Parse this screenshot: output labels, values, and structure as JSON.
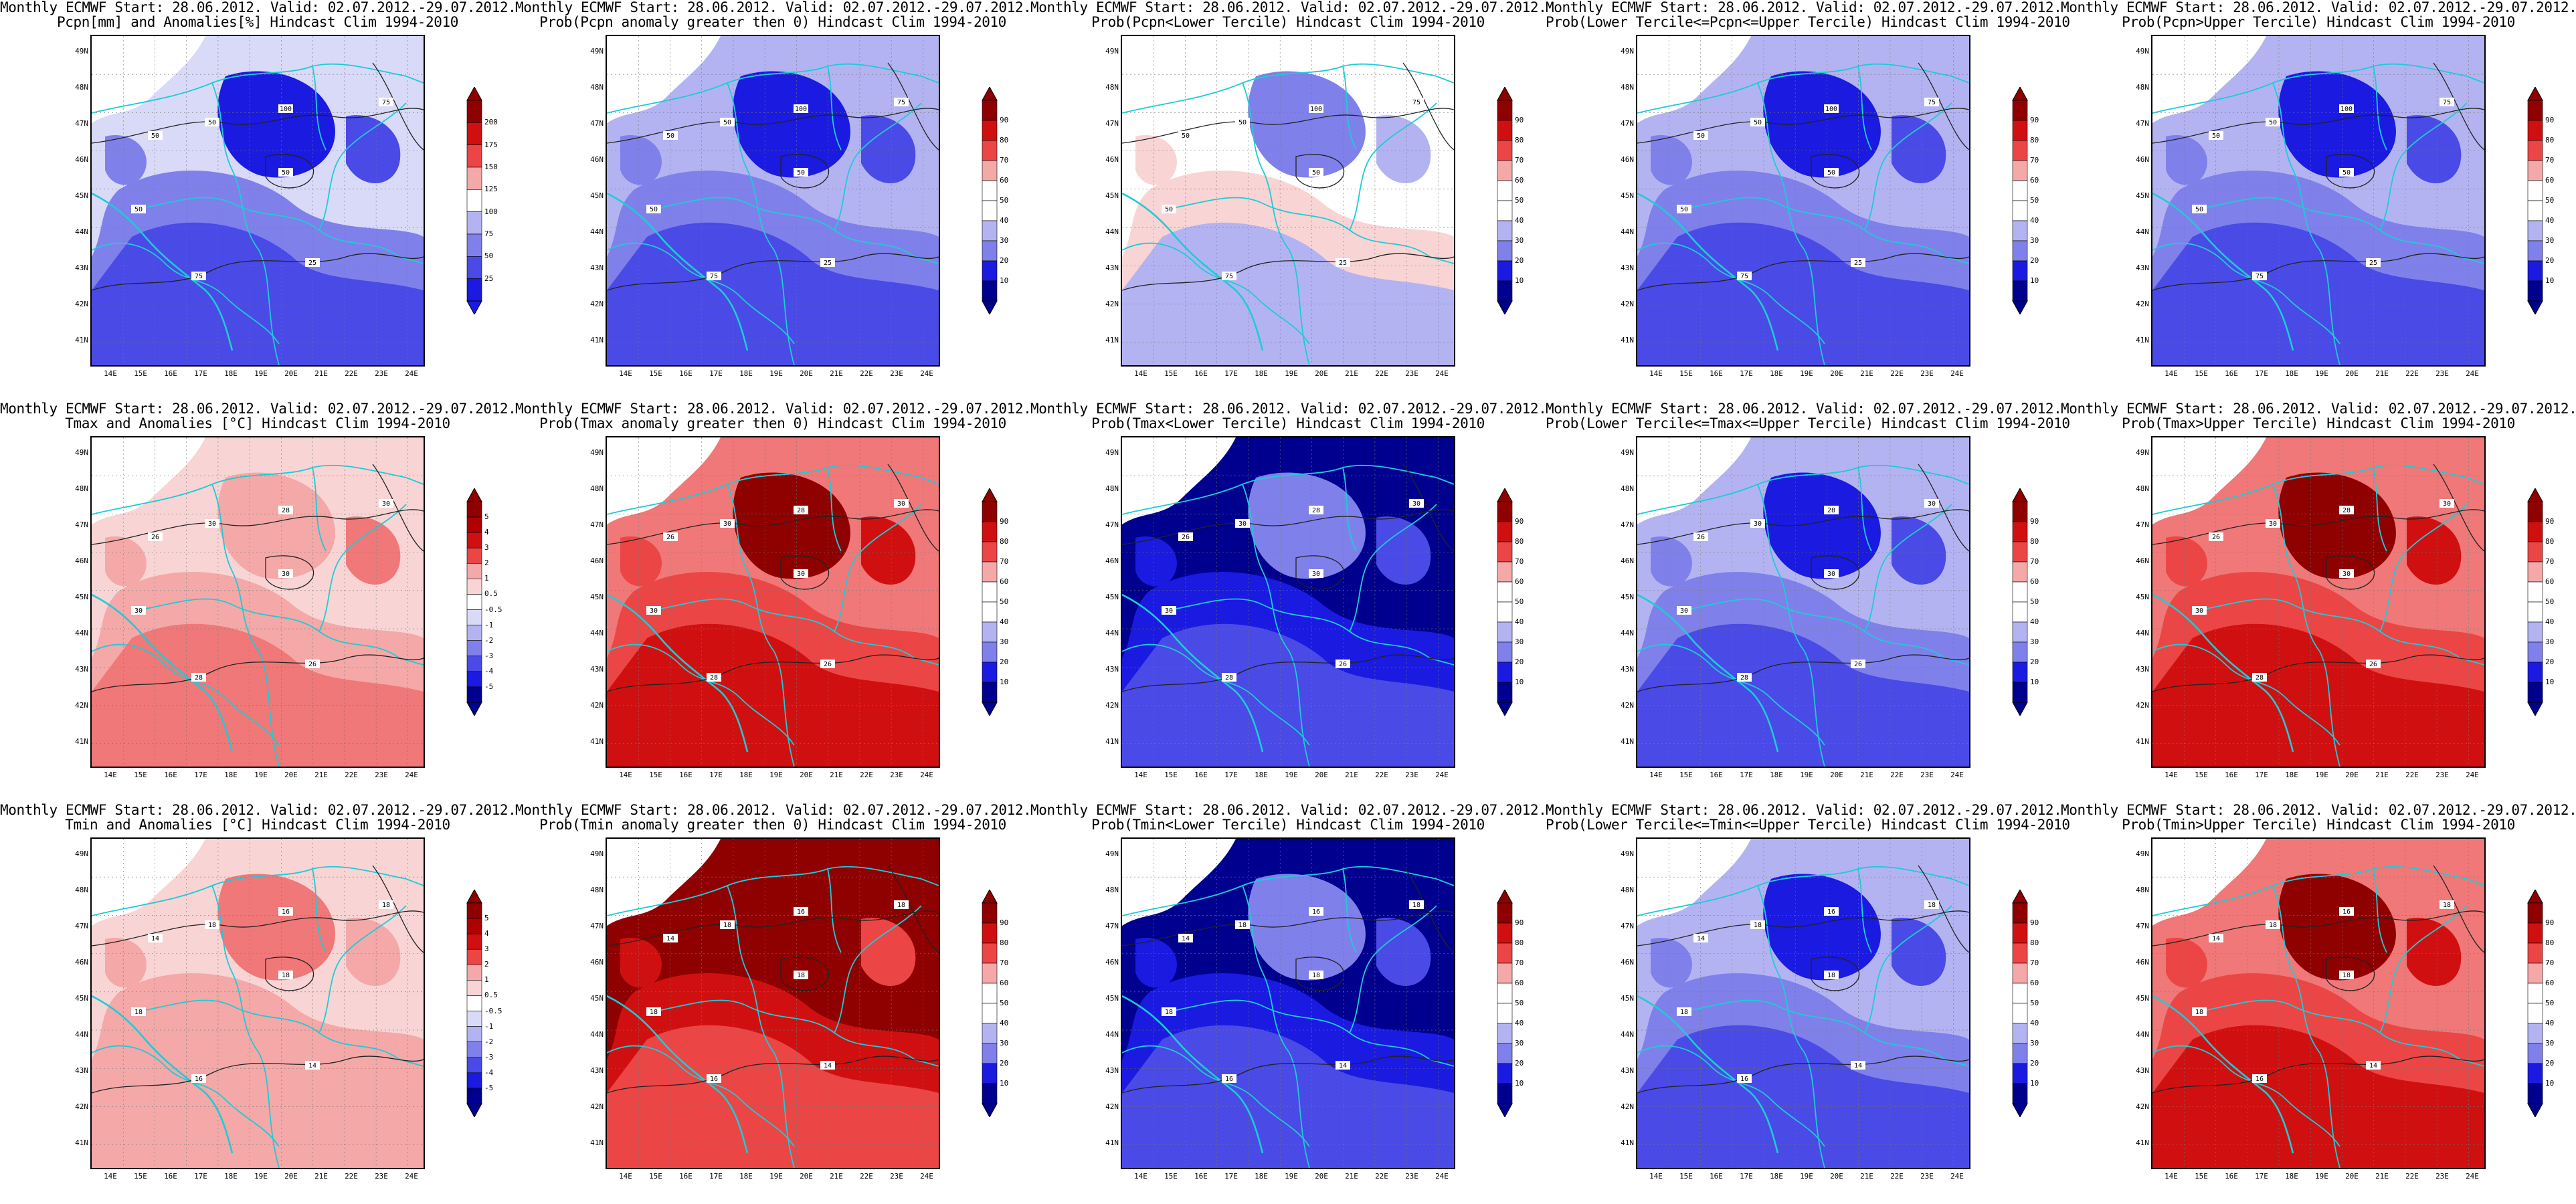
{
  "colors": {
    "blue_scale": [
      "#00008f",
      "#1a1ae0",
      "#4a4ae6",
      "#8080eb",
      "#b3b3f2",
      "#d9d9f8",
      "#ffffff"
    ],
    "red_scale": [
      "#ffffff",
      "#f8d4d4",
      "#f4a8a8",
      "#f07878",
      "#ec4545",
      "#d01010",
      "#8f0000"
    ],
    "border_line": "#1ecbd6",
    "contour_line": "#222222"
  },
  "icons": [
    "colorbar-arrow-up",
    "colorbar-arrow-down"
  ],
  "map": {
    "lon_ticks": [
      "14E",
      "15E",
      "16E",
      "17E",
      "18E",
      "19E",
      "20E",
      "21E",
      "22E",
      "23E",
      "24E"
    ],
    "lat_ticks": [
      "49N",
      "48N",
      "47N",
      "46N",
      "45N",
      "44N",
      "43N",
      "42N",
      "41N"
    ]
  },
  "panels": [
    {
      "title1": "Monthly ECMWF Start: 28.06.2012. Valid: 02.07.2012.-29.07.2012.",
      "title2": "Pcpn[mm] and Anomalies[%] Hindcast Clim 1994-2010",
      "levels": [
        "200",
        "175",
        "150",
        "125",
        "100",
        "75",
        "50",
        "25"
      ],
      "scheme": "anom",
      "contours": [
        "50",
        "50",
        "100",
        "75",
        "50",
        "75",
        "25",
        "50"
      ]
    },
    {
      "title1": "Monthly ECMWF Start: 28.06.2012. Valid: 02.07.2012.-29.07.2012.",
      "title2": "Prob(Pcpn anomaly greater then 0) Hindcast Clim 1994-2010",
      "levels": [
        "90",
        "80",
        "70",
        "60",
        "50",
        "40",
        "30",
        "20",
        "10"
      ],
      "scheme": "prob-blue",
      "contours": [
        "50",
        "50",
        "100",
        "75",
        "50",
        "75",
        "25",
        "50"
      ]
    },
    {
      "title1": "Monthly ECMWF Start: 28.06.2012. Valid: 02.07.2012.-29.07.2012.",
      "title2": "Prob(Pcpn<Lower Tercile) Hindcast Clim 1994-2010",
      "levels": [
        "90",
        "80",
        "70",
        "60",
        "50",
        "40",
        "30",
        "20",
        "10"
      ],
      "scheme": "prob-white",
      "contours": [
        "50",
        "50",
        "100",
        "75",
        "50",
        "75",
        "25",
        "50"
      ]
    },
    {
      "title1": "Monthly ECMWF Start: 28.06.2012. Valid: 02.07.2012.-29.07.2012.",
      "title2": "Prob(Lower Tercile<=Pcpn<=Upper Tercile) Hindcast Clim 1994-2010",
      "levels": [
        "90",
        "80",
        "70",
        "60",
        "50",
        "40",
        "30",
        "20",
        "10"
      ],
      "scheme": "prob-blue",
      "contours": [
        "50",
        "50",
        "100",
        "75",
        "50",
        "75",
        "25",
        "50"
      ]
    },
    {
      "title1": "Monthly ECMWF Start: 28.06.2012. Valid: 02.07.2012.-29.07.2012.",
      "title2": "Prob(Pcpn>Upper Tercile) Hindcast Clim 1994-2010",
      "levels": [
        "90",
        "80",
        "70",
        "60",
        "50",
        "40",
        "30",
        "20",
        "10"
      ],
      "scheme": "prob-blue",
      "contours": [
        "50",
        "50",
        "100",
        "75",
        "50",
        "75",
        "25",
        "50"
      ]
    },
    {
      "title1": "Monthly ECMWF Start: 28.06.2012. Valid: 02.07.2012.-29.07.2012.",
      "title2": "Tmax and Anomalies [°C] Hindcast Clim 1994-2010",
      "levels": [
        "5",
        "4",
        "3",
        "2",
        "1",
        "0.5",
        "-0.5",
        "-1",
        "-2",
        "-3",
        "-4",
        "-5"
      ],
      "scheme": "anom-red",
      "contours": [
        "26",
        "30",
        "28",
        "30",
        "30",
        "28",
        "26",
        "30"
      ]
    },
    {
      "title1": "Monthly ECMWF Start: 28.06.2012. Valid: 02.07.2012.-29.07.2012.",
      "title2": "Prob(Tmax anomaly greater then 0) Hindcast Clim 1994-2010",
      "levels": [
        "90",
        "80",
        "70",
        "60",
        "50",
        "40",
        "30",
        "20",
        "10"
      ],
      "scheme": "prob-red",
      "contours": [
        "26",
        "30",
        "28",
        "30",
        "30",
        "28",
        "26",
        "30"
      ]
    },
    {
      "title1": "Monthly ECMWF Start: 28.06.2012. Valid: 02.07.2012.-29.07.2012.",
      "title2": "Prob(Tmax<Lower Tercile) Hindcast Clim 1994-2010",
      "levels": [
        "90",
        "80",
        "70",
        "60",
        "50",
        "40",
        "30",
        "20",
        "10"
      ],
      "scheme": "prob-deepblue",
      "contours": [
        "26",
        "30",
        "28",
        "30",
        "30",
        "28",
        "26",
        "30"
      ]
    },
    {
      "title1": "Monthly ECMWF Start: 28.06.2012. Valid: 02.07.2012.-29.07.2012.",
      "title2": "Prob(Lower Tercile<=Tmax<=Upper Tercile) Hindcast Clim 1994-2010",
      "levels": [
        "90",
        "80",
        "70",
        "60",
        "50",
        "40",
        "30",
        "20",
        "10"
      ],
      "scheme": "prob-blue",
      "contours": [
        "26",
        "30",
        "28",
        "30",
        "30",
        "28",
        "26",
        "30"
      ]
    },
    {
      "title1": "Monthly ECMWF Start: 28.06.2012. Valid: 02.07.2012.-29.07.2012.",
      "title2": "Prob(Tmax>Upper Tercile) Hindcast Clim 1994-2010",
      "levels": [
        "90",
        "80",
        "70",
        "60",
        "50",
        "40",
        "30",
        "20",
        "10"
      ],
      "scheme": "prob-red",
      "contours": [
        "26",
        "30",
        "28",
        "30",
        "30",
        "28",
        "26",
        "30"
      ]
    },
    {
      "title1": "Monthly ECMWF Start: 28.06.2012. Valid: 02.07.2012.-29.07.2012.",
      "title2": "Tmin and Anomalies [°C] Hindcast Clim 1994-2010",
      "levels": [
        "5",
        "4",
        "3",
        "2",
        "1",
        "0.5",
        "-0.5",
        "-1",
        "-2",
        "-3",
        "-4",
        "-5"
      ],
      "scheme": "anom-lightred",
      "contours": [
        "14",
        "18",
        "16",
        "18",
        "18",
        "16",
        "14",
        "18"
      ]
    },
    {
      "title1": "Monthly ECMWF Start: 28.06.2012. Valid: 02.07.2012.-29.07.2012.",
      "title2": "Prob(Tmin anomaly greater then 0) Hindcast Clim 1994-2010",
      "levels": [
        "90",
        "80",
        "70",
        "60",
        "50",
        "40",
        "30",
        "20",
        "10"
      ],
      "scheme": "prob-deepred",
      "contours": [
        "14",
        "18",
        "16",
        "18",
        "18",
        "16",
        "14",
        "18"
      ]
    },
    {
      "title1": "Monthly ECMWF Start: 28.06.2012. Valid: 02.07.2012.-29.07.2012.",
      "title2": "Prob(Tmin<Lower Tercile) Hindcast Clim 1994-2010",
      "levels": [
        "90",
        "80",
        "70",
        "60",
        "50",
        "40",
        "30",
        "20",
        "10"
      ],
      "scheme": "prob-deepblue",
      "contours": [
        "14",
        "18",
        "16",
        "18",
        "18",
        "16",
        "14",
        "18"
      ]
    },
    {
      "title1": "Monthly ECMWF Start: 28.06.2012. Valid: 02.07.2012.-29.07.2012.",
      "title2": "Prob(Lower Tercile<=Tmin<=Upper Tercile) Hindcast Clim 1994-2010",
      "levels": [
        "90",
        "80",
        "70",
        "60",
        "50",
        "40",
        "30",
        "20",
        "10"
      ],
      "scheme": "prob-blue",
      "contours": [
        "14",
        "18",
        "16",
        "18",
        "18",
        "16",
        "14",
        "18"
      ]
    },
    {
      "title1": "Monthly ECMWF Start: 28.06.2012. Valid: 02.07.2012.-29.07.2012.",
      "title2": "Prob(Tmin>Upper Tercile) Hindcast Clim 1994-2010",
      "levels": [
        "90",
        "80",
        "70",
        "60",
        "50",
        "40",
        "30",
        "20",
        "10"
      ],
      "scheme": "prob-red",
      "contours": [
        "14",
        "18",
        "16",
        "18",
        "18",
        "16",
        "14",
        "18"
      ]
    }
  ]
}
